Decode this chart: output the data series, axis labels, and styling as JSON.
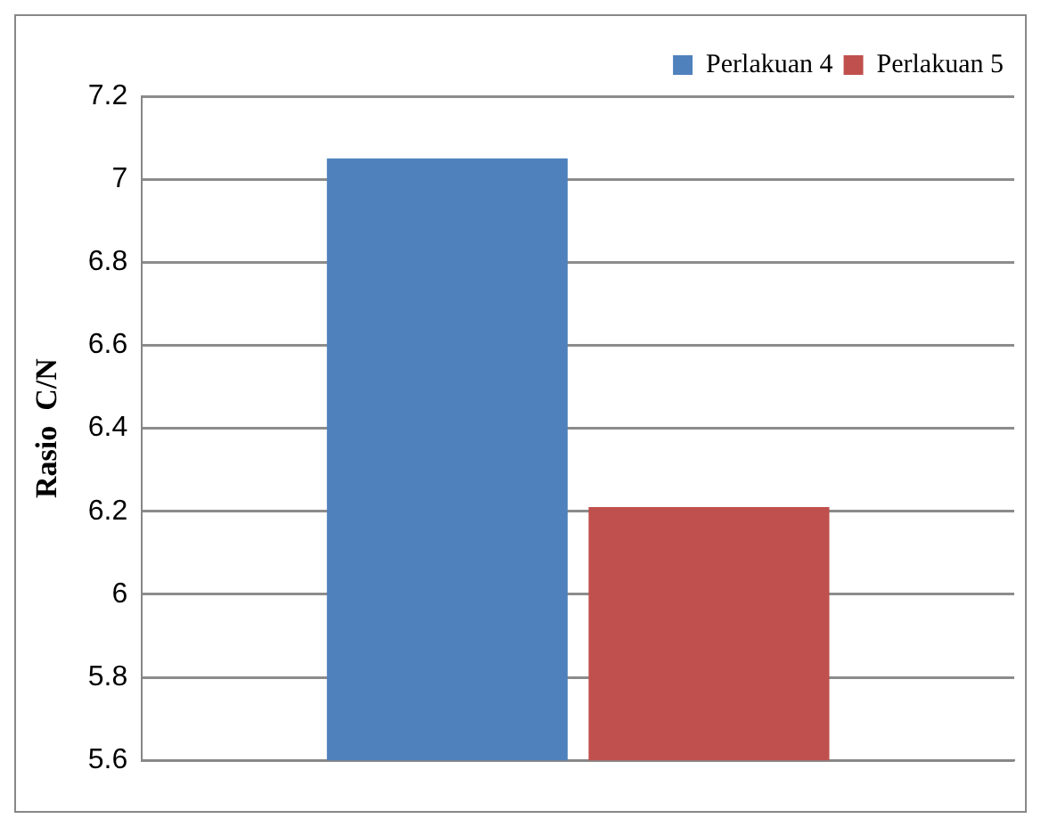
{
  "chart_data": {
    "type": "bar",
    "ylabel": "Rasio  C/N",
    "categories": [
      null
    ],
    "series": [
      {
        "name": "Perlakuan 4",
        "color": "#4f81bd",
        "values": [
          7.05
        ]
      },
      {
        "name": "Perlakuan 5",
        "color": "#c0504d",
        "values": [
          6.21
        ]
      }
    ],
    "ylim": [
      5.6,
      7.2
    ],
    "yticks": [
      {
        "value": 5.6,
        "label": "5.6"
      },
      {
        "value": 5.8,
        "label": "5.8"
      },
      {
        "value": 6,
        "label": "6"
      },
      {
        "value": 6.2,
        "label": "6.2"
      },
      {
        "value": 6.4,
        "label": "6.4"
      },
      {
        "value": 6.6,
        "label": "6.6"
      },
      {
        "value": 6.8,
        "label": "6.8"
      },
      {
        "value": 7,
        "label": "7"
      },
      {
        "value": 7.2,
        "label": "7.2"
      }
    ],
    "grid": "y",
    "legend": "top right"
  }
}
